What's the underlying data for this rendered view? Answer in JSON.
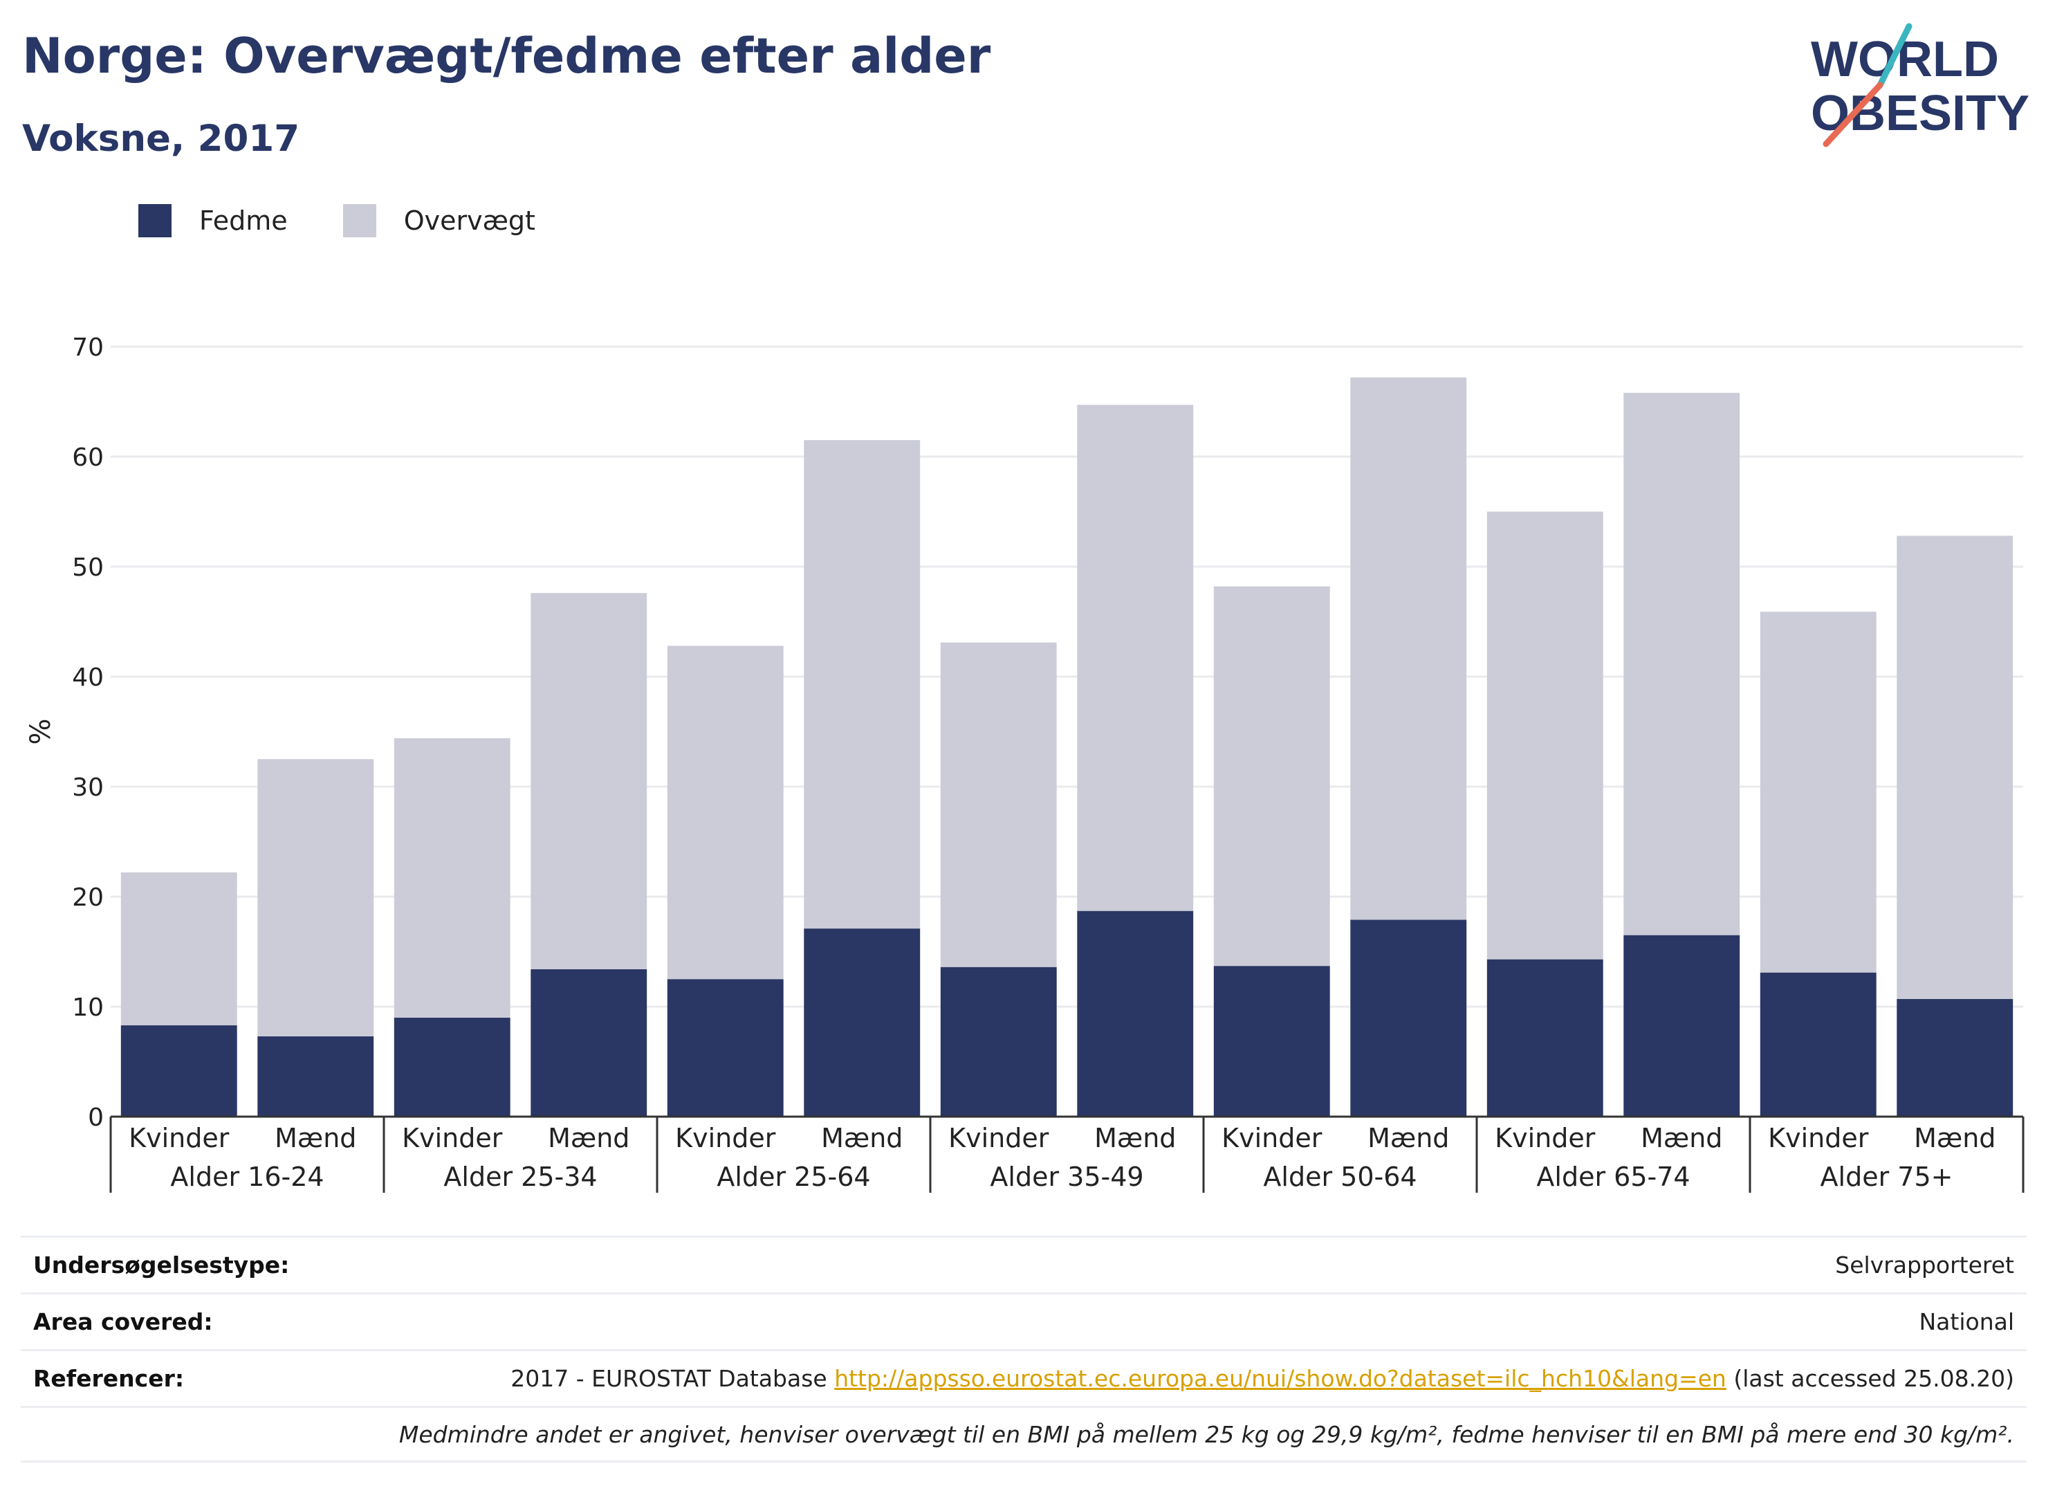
{
  "header": {
    "title": "Norge: Overvægt/fedme efter alder",
    "subtitle": "Voksne, 2017",
    "logo_line1": "WORLD",
    "logo_line2": "OBESITY"
  },
  "colors": {
    "fedme": "#2a3664",
    "overvaegt": "#cbccd7",
    "title": "#283766",
    "link": "#d8a000",
    "logo_teal": "#3bb5c0",
    "logo_coral": "#e86a55"
  },
  "legend": [
    {
      "label": "Fedme",
      "color": "#2a3664"
    },
    {
      "label": "Overvægt",
      "color": "#cbccd7"
    }
  ],
  "chart_data": {
    "type": "bar",
    "stacked": true,
    "ylabel": "%",
    "ylim": [
      0,
      70
    ],
    "yticks": [
      0,
      10,
      20,
      30,
      40,
      50,
      60,
      70
    ],
    "grid": true,
    "legend_position": "top-left",
    "groups": [
      "Alder 16-24",
      "Alder 25-34",
      "Alder 25-64",
      "Alder 35-49",
      "Alder 50-64",
      "Alder 65-74",
      "Alder 75+"
    ],
    "categories": [
      "Kvinder",
      "Mænd",
      "Kvinder",
      "Mænd",
      "Kvinder",
      "Mænd",
      "Kvinder",
      "Mænd",
      "Kvinder",
      "Mænd",
      "Kvinder",
      "Mænd",
      "Kvinder",
      "Mænd"
    ],
    "series": [
      {
        "name": "Fedme",
        "values": [
          8.3,
          7.3,
          9.0,
          13.4,
          12.5,
          17.1,
          13.6,
          18.7,
          13.7,
          17.9,
          14.3,
          16.5,
          13.1,
          10.7
        ]
      },
      {
        "name": "Overvægt",
        "values": [
          13.9,
          25.2,
          25.4,
          34.2,
          30.3,
          44.4,
          29.5,
          46.0,
          34.5,
          49.3,
          40.7,
          49.3,
          32.8,
          42.1
        ]
      }
    ]
  },
  "info": {
    "survey_label": "Undersøgelsestype:",
    "survey_value": "Selvrapporteret",
    "area_label": "Area covered:",
    "area_value": "National",
    "ref_label": "Referencer:",
    "ref_prefix": "2017 - EUROSTAT Database ",
    "ref_link": "http://appsso.eurostat.ec.europa.eu/nui/show.do?dataset=ilc_hch10&lang=en",
    "ref_suffix": " (last accessed 25.08.20)",
    "note": "Medmindre andet er angivet, henviser overvægt til en BMI på mellem 25 kg og 29,9 kg/m², fedme henviser til en BMI på mere end 30 kg/m²."
  }
}
